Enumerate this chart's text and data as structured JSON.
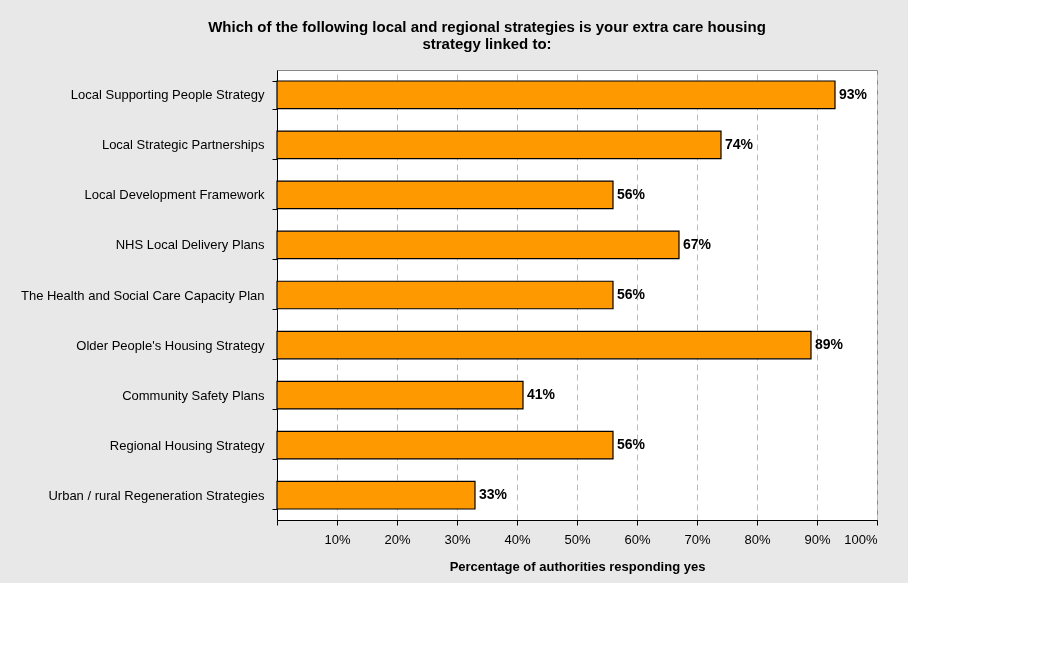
{
  "chart_data": {
    "type": "bar",
    "orientation": "horizontal",
    "title": "Which of the following local and regional strategies is your extra care housing strategy linked to:",
    "xlabel": "Percentage of authorities responding yes",
    "categories": [
      "Local Supporting People Strategy",
      "Local Strategic Partnerships",
      "Local Development Framework",
      "NHS Local Delivery Plans",
      "The Health and Social Care Capacity Plan",
      "Older People's Housing Strategy",
      "Community Safety Plans",
      "Regional Housing Strategy",
      "Urban / rural Regeneration Strategies"
    ],
    "values": [
      93,
      74,
      56,
      67,
      56,
      89,
      41,
      56,
      33
    ],
    "value_labels": [
      "93%",
      "74%",
      "56%",
      "67%",
      "56%",
      "89%",
      "41%",
      "56%",
      "33%"
    ],
    "color": "#ff9900",
    "xlim": [
      0,
      100
    ],
    "xticks": [
      {
        "value": 0,
        "label": null
      },
      {
        "value": 10,
        "label": "10%"
      },
      {
        "value": 20,
        "label": "20%"
      },
      {
        "value": 30,
        "label": "30%"
      },
      {
        "value": 40,
        "label": "40%"
      },
      {
        "value": 50,
        "label": "50%"
      },
      {
        "value": 60,
        "label": "60%"
      },
      {
        "value": 70,
        "label": "70%"
      },
      {
        "value": 80,
        "label": "80%"
      },
      {
        "value": 90,
        "label": "90%"
      },
      {
        "value": 100,
        "label": "100%"
      }
    ],
    "grid": "x"
  }
}
